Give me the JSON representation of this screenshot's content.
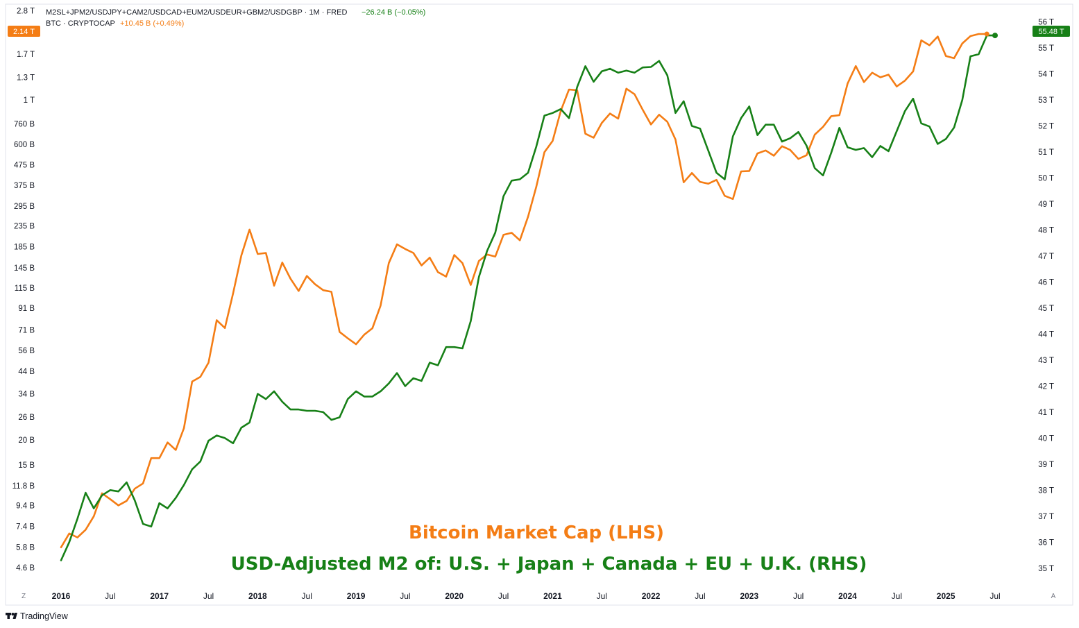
{
  "legend": {
    "m2_name": "M2SL+JPM2/USDJPY+CAM2/USDCAD+EUM2/USDEUR+GBM2/USDGBP · 1M · FRED",
    "m2_change": "−26.24 B (−0.05%)",
    "btc_name": "BTC · CRYPTOCAP",
    "btc_change": "+10.45 B (+0.49%)"
  },
  "badges": {
    "left_value": "2.14 T",
    "right_value": "55.48 T"
  },
  "colors": {
    "btc": "#f47d15",
    "m2": "#178017",
    "badge_left": "#f47d15",
    "badge_right": "#178017",
    "text": "#131722"
  },
  "annotations": {
    "btc_label": "Bitcoin Market Cap (LHS)",
    "m2_label": "USD-Adjusted M2 of: U.S. + Japan + Canada + EU + U.K. (RHS)"
  },
  "corner_labels": {
    "left": "Z",
    "right": "A"
  },
  "brand": {
    "name": "TradingView"
  },
  "chart_data": {
    "type": "line",
    "title": "",
    "x_start": "2016-01",
    "x_labels": [
      {
        "t": 0,
        "label": "2016",
        "bold": true
      },
      {
        "t": 6,
        "label": "Jul",
        "bold": false
      },
      {
        "t": 12,
        "label": "2017",
        "bold": true
      },
      {
        "t": 18,
        "label": "Jul",
        "bold": false
      },
      {
        "t": 24,
        "label": "2018",
        "bold": true
      },
      {
        "t": 30,
        "label": "Jul",
        "bold": false
      },
      {
        "t": 36,
        "label": "2019",
        "bold": true
      },
      {
        "t": 42,
        "label": "Jul",
        "bold": false
      },
      {
        "t": 48,
        "label": "2020",
        "bold": true
      },
      {
        "t": 54,
        "label": "Jul",
        "bold": false
      },
      {
        "t": 60,
        "label": "2021",
        "bold": true
      },
      {
        "t": 66,
        "label": "Jul",
        "bold": false
      },
      {
        "t": 72,
        "label": "2022",
        "bold": true
      },
      {
        "t": 78,
        "label": "Jul",
        "bold": false
      },
      {
        "t": 84,
        "label": "2023",
        "bold": true
      },
      {
        "t": 90,
        "label": "Jul",
        "bold": false
      },
      {
        "t": 96,
        "label": "2024",
        "bold": true
      },
      {
        "t": 102,
        "label": "Jul",
        "bold": false
      },
      {
        "t": 108,
        "label": "2025",
        "bold": true
      },
      {
        "t": 114,
        "label": "Jul",
        "bold": false
      }
    ],
    "x_range": [
      -0.5,
      116.5
    ],
    "left_axis": {
      "scale": "log",
      "unit": "billions USD",
      "range": [
        3.7,
        2900
      ],
      "ticks": [
        {
          "v": 2800,
          "label": "2.8 T"
        },
        {
          "v": 1700,
          "label": "1.7 T"
        },
        {
          "v": 1300,
          "label": "1.3 T"
        },
        {
          "v": 1000,
          "label": "1 T"
        },
        {
          "v": 760,
          "label": "760 B"
        },
        {
          "v": 600,
          "label": "600 B"
        },
        {
          "v": 475,
          "label": "475 B"
        },
        {
          "v": 375,
          "label": "375 B"
        },
        {
          "v": 295,
          "label": "295 B"
        },
        {
          "v": 235,
          "label": "235 B"
        },
        {
          "v": 185,
          "label": "185 B"
        },
        {
          "v": 145,
          "label": "145 B"
        },
        {
          "v": 115,
          "label": "115 B"
        },
        {
          "v": 91,
          "label": "91 B"
        },
        {
          "v": 71,
          "label": "71 B"
        },
        {
          "v": 56,
          "label": "56 B"
        },
        {
          "v": 44,
          "label": "44 B"
        },
        {
          "v": 34,
          "label": "34 B"
        },
        {
          "v": 26,
          "label": "26 B"
        },
        {
          "v": 20,
          "label": "20 B"
        },
        {
          "v": 15,
          "label": "15 B"
        },
        {
          "v": 11.8,
          "label": "11.8 B"
        },
        {
          "v": 9.4,
          "label": "9.4 B"
        },
        {
          "v": 7.4,
          "label": "7.4 B"
        },
        {
          "v": 5.8,
          "label": "5.8 B"
        },
        {
          "v": 4.6,
          "label": "4.6 B"
        }
      ]
    },
    "right_axis": {
      "scale": "linear",
      "unit": "trillions USD",
      "range": [
        34.3,
        56.55
      ],
      "ticks": [
        {
          "v": 56,
          "label": "56 T"
        },
        {
          "v": 55,
          "label": "55 T"
        },
        {
          "v": 54,
          "label": "54 T"
        },
        {
          "v": 53,
          "label": "53 T"
        },
        {
          "v": 52,
          "label": "52 T"
        },
        {
          "v": 51,
          "label": "51 T"
        },
        {
          "v": 50,
          "label": "50 T"
        },
        {
          "v": 49,
          "label": "49 T"
        },
        {
          "v": 48,
          "label": "48 T"
        },
        {
          "v": 47,
          "label": "47 T"
        },
        {
          "v": 46,
          "label": "46 T"
        },
        {
          "v": 45,
          "label": "45 T"
        },
        {
          "v": 44,
          "label": "44 T"
        },
        {
          "v": 43,
          "label": "43 T"
        },
        {
          "v": 42,
          "label": "42 T"
        },
        {
          "v": 41,
          "label": "41 T"
        },
        {
          "v": 40,
          "label": "40 T"
        },
        {
          "v": 39,
          "label": "39 T"
        },
        {
          "v": 38,
          "label": "38 T"
        },
        {
          "v": 37,
          "label": "37 T"
        },
        {
          "v": 36,
          "label": "36 T"
        },
        {
          "v": 35,
          "label": "35 T"
        }
      ]
    },
    "series": [
      {
        "name": "BTC · CRYPTOCAP",
        "axis": "left",
        "unit": "billions USD",
        "values": [
          5.8,
          6.8,
          6.5,
          7.1,
          8.3,
          10.8,
          10.1,
          9.4,
          9.9,
          11.4,
          12.1,
          16.2,
          16.2,
          19.4,
          17.8,
          22.9,
          39.1,
          41.3,
          48.6,
          79.3,
          72.5,
          108,
          167,
          225,
          170,
          172,
          118,
          154,
          128,
          111,
          132,
          120,
          112,
          110,
          69.3,
          64.4,
          60.1,
          67.1,
          72.3,
          93.9,
          153,
          190,
          180,
          172,
          149,
          163,
          138,
          131,
          168,
          153,
          119,
          157,
          169,
          165,
          212,
          217,
          199,
          261,
          368,
          549,
          625,
          884,
          1130,
          1120,
          679,
          648,
          769,
          857,
          808,
          1140,
          1070,
          894,
          755,
          845,
          779,
          635,
          388,
          432,
          390,
          382,
          399,
          332,
          320,
          440,
          442,
          541,
          560,
          527,
          588,
          563,
          508,
          530,
          672,
          735,
          831,
          841,
          1210,
          1480,
          1230,
          1370,
          1300,
          1340,
          1170,
          1250,
          1390,
          1990,
          1880,
          2080,
          1660,
          1620,
          1920,
          2090,
          2140,
          2140
        ]
      },
      {
        "name": "M2SL+JPM2/USDJPY+CAM2/USDCAD+EUM2/USDEUR+GBM2/USDGBP",
        "axis": "right",
        "unit": "trillions USD",
        "values": [
          35.3,
          36.0,
          36.9,
          37.9,
          37.3,
          37.8,
          38.0,
          37.95,
          38.3,
          37.6,
          36.7,
          36.6,
          37.5,
          37.3,
          37.7,
          38.2,
          38.8,
          39.1,
          39.9,
          40.1,
          40.0,
          39.8,
          40.4,
          40.6,
          41.7,
          41.5,
          41.8,
          41.4,
          41.1,
          41.1,
          41.05,
          41.05,
          41.0,
          40.7,
          40.8,
          41.5,
          41.8,
          41.6,
          41.6,
          41.8,
          42.1,
          42.5,
          42.0,
          42.3,
          42.2,
          42.9,
          42.8,
          43.5,
          43.5,
          43.45,
          44.5,
          46.2,
          47.2,
          47.9,
          49.3,
          49.9,
          49.95,
          50.2,
          51.2,
          52.4,
          52.5,
          52.65,
          52.3,
          53.5,
          54.3,
          53.7,
          54.1,
          54.2,
          54.05,
          54.13,
          54.05,
          54.25,
          54.27,
          54.5,
          53.95,
          52.5,
          52.95,
          52.0,
          51.9,
          51.05,
          50.2,
          49.95,
          51.6,
          52.3,
          52.75,
          51.65,
          52.05,
          52.05,
          51.4,
          51.53,
          51.77,
          51.24,
          50.38,
          50.1,
          50.97,
          51.93,
          51.18,
          51.08,
          51.15,
          50.8,
          51.23,
          51.03,
          51.8,
          52.57,
          53.05,
          52.1,
          51.98,
          51.31,
          51.5,
          51.94,
          53.0,
          54.68,
          54.76,
          55.48,
          55.48
        ]
      }
    ]
  }
}
